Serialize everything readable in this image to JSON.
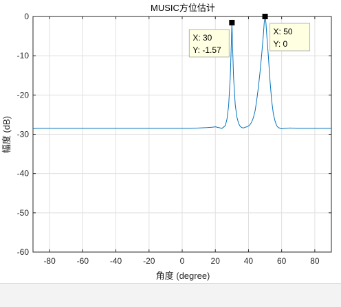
{
  "chart_data": {
    "type": "line",
    "title": "MUSIC方位估计",
    "xlabel": "角度 (degree)",
    "ylabel": "幅度 (dB)",
    "xlim": [
      -90,
      90
    ],
    "ylim": [
      -60,
      0
    ],
    "xticks": [
      -80,
      -60,
      -40,
      -20,
      0,
      20,
      40,
      60,
      80
    ],
    "yticks": [
      0,
      -10,
      -20,
      -30,
      -40,
      -50,
      -60
    ],
    "grid": true,
    "line_color": "#0072bd",
    "series": [
      {
        "x": [
          -90,
          -88,
          -85,
          -80,
          -70,
          -60,
          -50,
          -40,
          -30,
          -20,
          -10,
          0,
          5,
          10,
          15,
          18,
          20,
          22,
          24,
          26,
          27,
          28,
          29,
          29.5,
          30,
          30.5,
          31,
          32,
          33,
          34,
          35,
          36,
          37,
          38,
          39,
          40,
          41,
          42,
          43,
          44,
          45,
          46,
          47,
          48,
          49,
          49.5,
          50,
          50.5,
          51,
          52,
          53,
          54,
          55,
          56,
          57,
          58,
          60,
          62,
          65,
          70,
          75,
          80,
          85,
          88,
          90
        ],
        "y": [
          -28.6,
          -28.5,
          -28.5,
          -28.5,
          -28.5,
          -28.5,
          -28.5,
          -28.5,
          -28.5,
          -28.5,
          -28.5,
          -28.5,
          -28.5,
          -28.4,
          -28.3,
          -28.2,
          -28.1,
          -28.3,
          -28.5,
          -27.8,
          -26.2,
          -22.8,
          -15.5,
          -9.0,
          -1.57,
          -9.0,
          -15.5,
          -22.5,
          -25.6,
          -27.2,
          -28.0,
          -28.3,
          -28.4,
          -28.2,
          -28.1,
          -27.9,
          -27.5,
          -26.8,
          -25.7,
          -24.0,
          -21.2,
          -17.9,
          -14.0,
          -9.5,
          -4.5,
          -1.5,
          0,
          -1.5,
          -4.6,
          -10.2,
          -16.5,
          -21.5,
          -24.8,
          -26.6,
          -27.8,
          -28.3,
          -28.6,
          -28.5,
          -28.4,
          -28.5,
          -28.5,
          -28.5,
          -28.5,
          -28.5,
          -28.5
        ]
      }
    ],
    "datatips": [
      {
        "x": 30,
        "y": -1.57,
        "x_text": "X: 30",
        "y_text": "Y: -1.57",
        "side": "left"
      },
      {
        "x": 50,
        "y": 0,
        "x_text": "X: 50",
        "y_text": "Y: 0",
        "side": "right"
      }
    ]
  }
}
